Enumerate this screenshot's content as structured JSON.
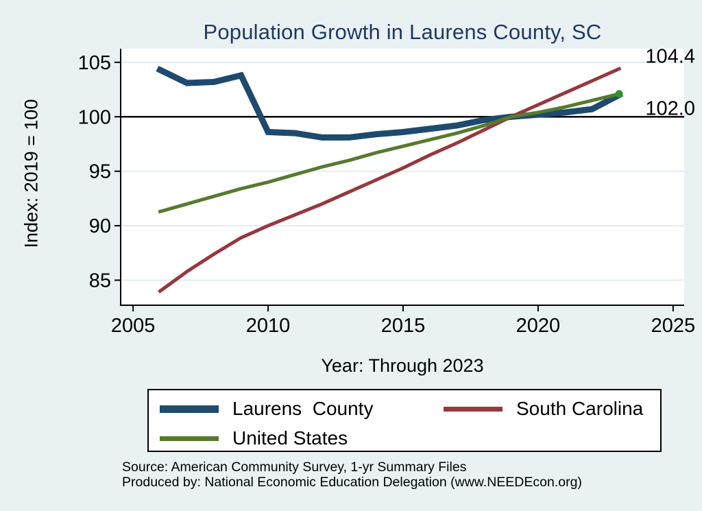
{
  "page": {
    "background": "#EAF1F3"
  },
  "chart_data": {
    "type": "line",
    "title": "Population Growth in Laurens County, SC",
    "title_color": "#1F3864",
    "xlabel": "Year: Through 2023",
    "ylabel": "Index: 2019 = 100",
    "x": [
      2006,
      2007,
      2008,
      2009,
      2010,
      2011,
      2012,
      2013,
      2014,
      2015,
      2016,
      2017,
      2018,
      2019,
      2020,
      2021,
      2022,
      2023
    ],
    "series": [
      {
        "name": "Laurens  County",
        "color": "#1F4A6E",
        "line_width": 9,
        "values": [
          104.3,
          103.1,
          103.2,
          103.8,
          98.6,
          98.5,
          98.1,
          98.1,
          98.4,
          98.6,
          98.9,
          99.2,
          99.7,
          100.0,
          100.2,
          100.4,
          100.7,
          102.0
        ]
      },
      {
        "name": "South Carolina",
        "color": "#96383E",
        "line_width": 5,
        "values": [
          84.0,
          85.8,
          87.4,
          88.9,
          90.0,
          91.0,
          92.0,
          93.1,
          94.2,
          95.3,
          96.5,
          97.6,
          98.8,
          100.0,
          101.1,
          102.2,
          103.3,
          104.4
        ]
      },
      {
        "name": "United States",
        "color": "#587A2F",
        "line_width": 5,
        "end_marker_color": "#2E9430",
        "end_marker_radius": 5.5,
        "values": [
          91.3,
          92.0,
          92.7,
          93.4,
          94.0,
          94.7,
          95.4,
          96.0,
          96.7,
          97.3,
          97.9,
          98.5,
          99.2,
          100.0,
          100.4,
          100.9,
          101.5,
          102.1
        ]
      }
    ],
    "xlim": [
      2004.54,
      2025.41
    ],
    "ylim": [
      82.7,
      106.25
    ],
    "x_ticks": [
      2005,
      2010,
      2015,
      2020,
      2025
    ],
    "y_ticks": [
      85,
      90,
      95,
      100,
      105
    ],
    "y_gridlines": [
      85,
      90,
      95,
      105
    ],
    "grid_color": "#E2EDF0",
    "plot_bg": "#FFFFFF",
    "axis_color": "#000000",
    "reference_line": {
      "y": 100,
      "color": "#000000"
    },
    "annotations": [
      {
        "text": "104.4",
        "y": 105.6
      },
      {
        "text": "102.0",
        "y": 100.8
      }
    ],
    "legend_position": "bottom"
  },
  "footer": {
    "source": "Source: American Community Survey, 1-yr Summary Files",
    "produced_by": "Produced by: National Economic Education Delegation (www.NEEDEcon.org)"
  }
}
